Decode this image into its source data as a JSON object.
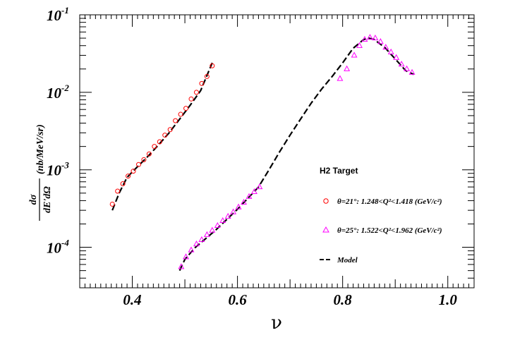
{
  "chart_data": {
    "type": "scatter",
    "xlabel": "ν",
    "ylabel": "(nb/MeV/sr)",
    "ylabel_fraction": {
      "numerator": "dσ",
      "denominator": "dE'dΩ"
    },
    "xlim": [
      0.3,
      1.05
    ],
    "ylim": [
      3e-05,
      0.1
    ],
    "yscale": "log",
    "x_ticks": [
      "0.4",
      "0.6",
      "0.8",
      "1.0"
    ],
    "y_ticks": [
      {
        "base": "10",
        "exp": "-1",
        "value": 0.1
      },
      {
        "base": "10",
        "exp": "-2",
        "value": 0.01
      },
      {
        "base": "10",
        "exp": "-3",
        "value": 0.001
      },
      {
        "base": "10",
        "exp": "-4",
        "value": 0.0001
      }
    ],
    "legend": {
      "title": "H2 Target",
      "position": "right"
    },
    "series": [
      {
        "name": "θ=21°: 1.248<Q²<1.418 (GeV/c²)",
        "marker": "circle-open",
        "color": "#ff0000",
        "x": [
          0.362,
          0.372,
          0.382,
          0.392,
          0.402,
          0.412,
          0.422,
          0.432,
          0.442,
          0.452,
          0.462,
          0.472,
          0.482,
          0.492,
          0.502,
          0.512,
          0.522,
          0.532,
          0.542,
          0.552
        ],
        "y": [
          0.00036,
          0.00053,
          0.00066,
          0.00083,
          0.00096,
          0.00117,
          0.00135,
          0.0016,
          0.002,
          0.0023,
          0.0028,
          0.0033,
          0.0043,
          0.0052,
          0.0062,
          0.0082,
          0.01,
          0.013,
          0.016,
          0.022
        ]
      },
      {
        "name": "θ=25°: 1.522<Q²<1.962 (GeV/c²)",
        "marker": "triangle-open",
        "color": "#ff00ff",
        "x": [
          0.493,
          0.502,
          0.512,
          0.522,
          0.532,
          0.542,
          0.552,
          0.562,
          0.572,
          0.582,
          0.592,
          0.602,
          0.612,
          0.622,
          0.632,
          0.642,
          0.795,
          0.808,
          0.822,
          0.832,
          0.842,
          0.852,
          0.862,
          0.872,
          0.882,
          0.892,
          0.902,
          0.912,
          0.922,
          0.932
        ],
        "y": [
          5.6e-05,
          7.5e-05,
          9.2e-05,
          0.00011,
          0.000125,
          0.000145,
          0.000165,
          0.00019,
          0.00022,
          0.00025,
          0.000285,
          0.00033,
          0.00038,
          0.00045,
          0.00052,
          0.0006,
          0.015,
          0.02,
          0.03,
          0.04,
          0.048,
          0.051,
          0.05,
          0.045,
          0.038,
          0.033,
          0.028,
          0.023,
          0.02,
          0.018
        ]
      },
      {
        "name": "Model",
        "style": "dashed-line",
        "color": "#000000",
        "segments": [
          {
            "x": [
              0.362,
              0.375,
              0.39,
              0.41,
              0.43,
              0.45,
              0.47,
              0.49,
              0.51,
              0.53,
              0.552
            ],
            "y": [
              0.0003,
              0.0005,
              0.0008,
              0.0011,
              0.0015,
              0.0021,
              0.003,
              0.0045,
              0.0068,
              0.0105,
              0.024
            ]
          },
          {
            "x": [
              0.49,
              0.5,
              0.52,
              0.54,
              0.56,
              0.58,
              0.6,
              0.62,
              0.64,
              0.66,
              0.68,
              0.7,
              0.72,
              0.74,
              0.76,
              0.78,
              0.8,
              0.82,
              0.84,
              0.85,
              0.86,
              0.88,
              0.9,
              0.92,
              0.935
            ],
            "y": [
              5e-05,
              7e-05,
              0.0001,
              0.00013,
              0.00017,
              0.00023,
              0.00031,
              0.00043,
              0.0006,
              0.001,
              0.0017,
              0.0028,
              0.0045,
              0.0072,
              0.011,
              0.016,
              0.024,
              0.037,
              0.048,
              0.05,
              0.048,
              0.038,
              0.027,
              0.019,
              0.017
            ]
          }
        ]
      }
    ]
  }
}
